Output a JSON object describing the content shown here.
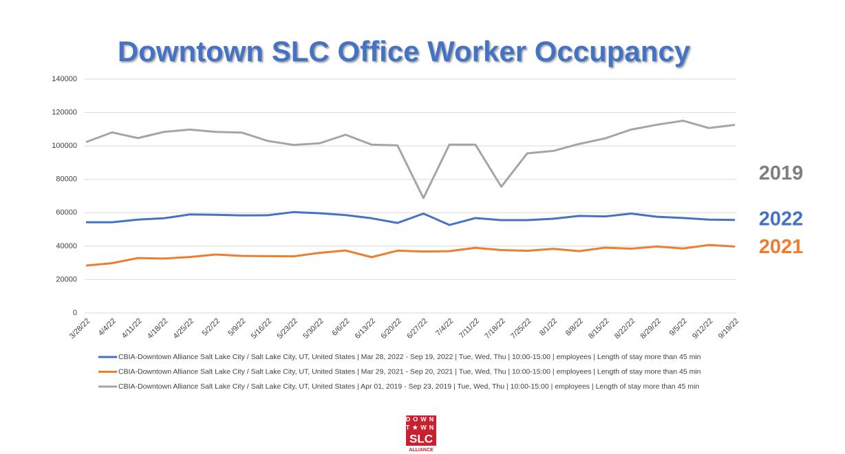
{
  "chart_data": {
    "type": "line",
    "title": "Downtown SLC Office Worker Occupancy",
    "categories": [
      "3/28/22",
      "4/4/22",
      "4/11/22",
      "4/18/22",
      "4/25/22",
      "5/2/22",
      "5/9/22",
      "5/16/22",
      "5/23/22",
      "5/30/22",
      "6/6/22",
      "6/13/22",
      "6/20/22",
      "6/27/22",
      "7/4/22",
      "7/11/22",
      "7/18/22",
      "7/25/22",
      "8/1/22",
      "8/8/22",
      "8/15/22",
      "8/22/22",
      "8/29/22",
      "9/5/22",
      "9/12/22",
      "9/19/22"
    ],
    "series": [
      {
        "name": "CBIA-Downtown Alliance Salt Lake City / Salt Lake City, UT, United States | Mar 28, 2022 - Sep 19, 2022 | Tue, Wed, Thu | 10:00-15:00 | employees | Length of stay more than 45 min",
        "end_label": "2022",
        "color": "#4472c4",
        "values": [
          54300,
          54300,
          55900,
          56700,
          59000,
          58800,
          58400,
          58500,
          60400,
          59700,
          58600,
          56700,
          53900,
          59500,
          52700,
          56800,
          55600,
          55600,
          56400,
          58100,
          57800,
          59500,
          57600,
          56900,
          55900,
          55700
        ]
      },
      {
        "name": "CBIA-Downtown Alliance Salt Lake City / Salt Lake City, UT, United States | Mar 29, 2021 - Sep 20, 2021 | Tue, Wed, Thu | 10:00-15:00 | employees | Length of stay more than 45 min",
        "end_label": "2021",
        "color": "#ed7d31",
        "values": [
          28400,
          29800,
          32900,
          32600,
          33500,
          35000,
          34200,
          34000,
          33900,
          36000,
          37400,
          33400,
          37300,
          36800,
          37000,
          39000,
          37700,
          37200,
          38400,
          37000,
          39100,
          38500,
          39800,
          38600,
          40700,
          39800
        ]
      },
      {
        "name": "CBIA-Downtown Alliance Salt Lake City / Salt Lake City, UT, United States | Apr 01, 2019 - Sep 23, 2019 | Tue, Wed, Thu | 10:00-15:00 | employees | Length of stay more than 45 min",
        "end_label": "2019",
        "color": "#a5a5a5",
        "values": [
          102300,
          108100,
          104700,
          108400,
          109800,
          108400,
          108000,
          103000,
          100600,
          101600,
          106700,
          100800,
          100300,
          68800,
          100800,
          100800,
          75600,
          95600,
          97000,
          101200,
          104500,
          109800,
          112700,
          115100,
          110700,
          112600
        ]
      }
    ],
    "ylim": [
      0,
      140000
    ],
    "yticks": [
      0,
      20000,
      40000,
      60000,
      80000,
      100000,
      120000,
      140000
    ],
    "grid": true
  },
  "logo": {
    "rows": [
      "DOWN",
      "T★WN"
    ],
    "name": "SLC",
    "tagline": "ALLIANCE"
  }
}
